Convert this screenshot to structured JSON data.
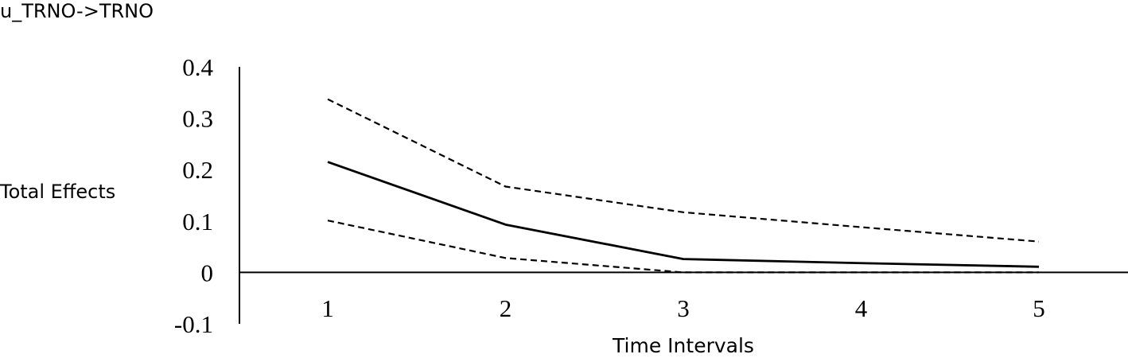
{
  "chart_data": {
    "type": "line",
    "title": "u_TRNO->TRNO",
    "xlabel": "Time Intervals",
    "ylabel": "Total Effects",
    "categories": [
      "1",
      "2",
      "3",
      "4",
      "5"
    ],
    "y_ticks": [
      "0.4",
      "0.3",
      "0.2",
      "0.1",
      "0",
      "-0.1"
    ],
    "y_tick_values": [
      0.4,
      0.3,
      0.2,
      0.1,
      0,
      -0.1
    ],
    "ylim": [
      -0.1,
      0.4
    ],
    "grid": false,
    "series": [
      {
        "style": "dashed",
        "color": "#000000",
        "values": [
          0.337,
          0.167,
          0.117,
          0.088,
          0.06
        ]
      },
      {
        "style": "solid",
        "color": "#000000",
        "values": [
          0.215,
          0.093,
          0.026,
          0.018,
          0.011
        ]
      },
      {
        "style": "dashed",
        "color": "#000000",
        "values": [
          0.101,
          0.028,
          0.0,
          0.0,
          0.0
        ]
      }
    ]
  }
}
